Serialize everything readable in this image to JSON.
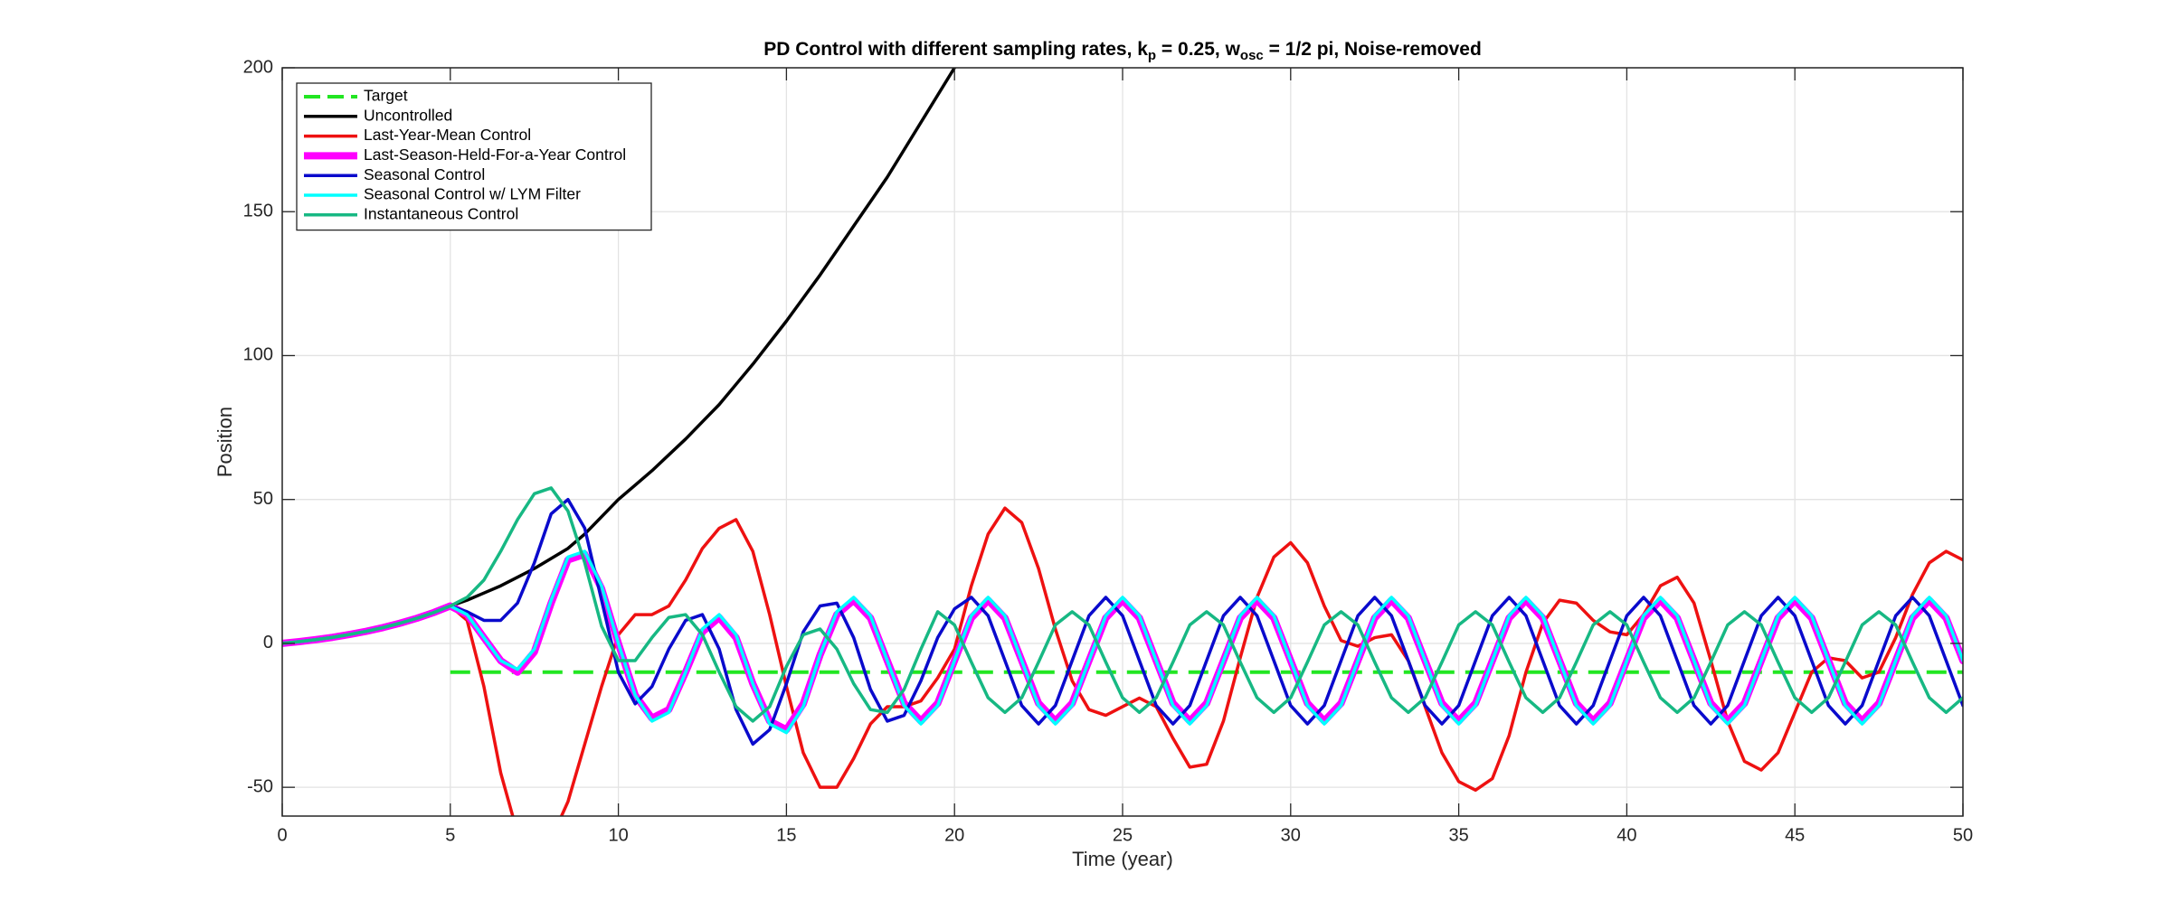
{
  "chart_data": {
    "type": "line",
    "title": [
      "PD Control with different sampling rates, k",
      "p",
      " = 0.25, w",
      "osc",
      " = 1/2 pi, Noise-removed"
    ],
    "x_label": "Time (year)",
    "y_label": "Position",
    "xlim": [
      0,
      50
    ],
    "ylim": [
      -60,
      200
    ],
    "xticks": [
      0,
      5,
      10,
      15,
      20,
      25,
      30,
      35,
      40,
      45,
      50
    ],
    "yticks": [
      -50,
      0,
      50,
      100,
      150,
      200
    ],
    "grid": true,
    "legend": "upper-left",
    "x": [
      0,
      0.5,
      1,
      1.5,
      2,
      2.5,
      3,
      3.5,
      4,
      4.5,
      5,
      5.5,
      6,
      6.5,
      7,
      7.5,
      8,
      8.5,
      9,
      9.5,
      10,
      10.5,
      11,
      11.5,
      12,
      12.5,
      13,
      13.5,
      14,
      14.5,
      15,
      15.5,
      16,
      16.5,
      17,
      17.5,
      18,
      18.5,
      19,
      19.5,
      20,
      20.5,
      21,
      21.5,
      22,
      22.5,
      23,
      23.5,
      24,
      24.5,
      25,
      25.5,
      26,
      26.5,
      27,
      27.5,
      28,
      28.5,
      29,
      29.5,
      30,
      30.5,
      31,
      31.5,
      32,
      32.5,
      33,
      33.5,
      34,
      34.5,
      35,
      35.5,
      36,
      36.5,
      37,
      37.5,
      38,
      38.5,
      39,
      39.5,
      40,
      40.5,
      41,
      41.5,
      42,
      42.5,
      43,
      43.5,
      44,
      44.5,
      45,
      45.5,
      46,
      46.5,
      47,
      47.5,
      48,
      48.5,
      49,
      49.5,
      50
    ],
    "series": [
      {
        "name": "Target",
        "color": "#22e622",
        "width": 4,
        "dash": true,
        "values": [
          null,
          null,
          null,
          null,
          null,
          null,
          null,
          null,
          null,
          null,
          -10,
          -10,
          -10,
          -10,
          -10,
          -10,
          -10,
          -10,
          -10,
          -10,
          -10,
          -10,
          -10,
          -10,
          -10,
          -10,
          -10,
          -10,
          -10,
          -10,
          -10,
          -10,
          -10,
          -10,
          -10,
          -10,
          -10,
          -10,
          -10,
          -10,
          -10,
          -10,
          -10,
          -10,
          -10,
          -10,
          -10,
          -10,
          -10,
          -10,
          -10,
          -10,
          -10,
          -10,
          -10,
          -10,
          -10,
          -10,
          -10,
          -10,
          -10,
          -10,
          -10,
          -10,
          -10,
          -10,
          -10,
          -10,
          -10,
          -10,
          -10,
          -10,
          -10,
          -10,
          -10,
          -10,
          -10,
          -10,
          -10,
          -10,
          -10,
          -10,
          -10,
          -10,
          -10,
          -10,
          -10,
          -10,
          -10,
          -10,
          -10,
          -10,
          -10,
          -10,
          -10,
          -10,
          -10,
          -10,
          -10,
          -10,
          -10
        ]
      },
      {
        "name": "Uncontrolled",
        "color": "#000000",
        "width": 3.5,
        "values": [
          0,
          0.6,
          1.3,
          2.1,
          3.1,
          4.2,
          5.5,
          7,
          8.7,
          10.7,
          13,
          15,
          17.5,
          20,
          23,
          26,
          29.5,
          33,
          38,
          44,
          50,
          55,
          60,
          65.5,
          71,
          77,
          83,
          90,
          97,
          104.5,
          112,
          120,
          128,
          136.5,
          145,
          153.5,
          162,
          171.5,
          181,
          190.5,
          200,
          null,
          null,
          null,
          null,
          null,
          null,
          null,
          null,
          null,
          null,
          null,
          null,
          null,
          null,
          null,
          null,
          null,
          null,
          null,
          null,
          null,
          null,
          null,
          null,
          null,
          null,
          null,
          null,
          null,
          null,
          null,
          null,
          null,
          null,
          null,
          null,
          null,
          null,
          null,
          null,
          null,
          null,
          null,
          null,
          null,
          null,
          null,
          null,
          null,
          null,
          null,
          null,
          null,
          null,
          null,
          null,
          null,
          null,
          null,
          null
        ]
      },
      {
        "name": "Last-Year-Mean Control",
        "color": "#ee1111",
        "width": 3.5,
        "values": [
          0,
          0.6,
          1.3,
          2.1,
          3.1,
          4.2,
          5.5,
          7,
          8.7,
          10.7,
          13,
          8,
          -15,
          -45,
          -66,
          -72,
          -68,
          -55,
          -35,
          -15,
          3,
          10,
          10,
          13,
          22,
          33,
          40,
          43,
          32,
          10,
          -15,
          -38,
          -50,
          -50,
          -40,
          -28,
          -22,
          -22,
          -20,
          -12,
          -2,
          20,
          38,
          47,
          42,
          26,
          5,
          -13,
          -23,
          -25,
          -22,
          -19,
          -22,
          -33,
          -43,
          -42,
          -27,
          -5,
          16,
          30,
          35,
          28,
          13,
          1,
          -1,
          2,
          3,
          -6,
          -22,
          -38,
          -48,
          -51,
          -47,
          -32,
          -10,
          7,
          15,
          14,
          8,
          4,
          3,
          10,
          20,
          23,
          14,
          -6,
          -27,
          -41,
          -44,
          -38,
          -24,
          -10,
          -5,
          -6,
          -12,
          -10,
          2,
          17,
          28,
          32,
          29
        ]
      },
      {
        "name": "Last-Season-Held-For-a-Year Control",
        "color": "#ff00ff",
        "width": 8,
        "values": [
          0,
          0.6,
          1.3,
          2.1,
          3.1,
          4.2,
          5.5,
          7,
          8.7,
          10.7,
          13,
          10,
          2,
          -6,
          -10,
          -3,
          14,
          29,
          31,
          19,
          0,
          -18,
          -26,
          -23,
          -10,
          4,
          9,
          2,
          -14,
          -27,
          -30,
          -21,
          -4,
          10,
          15,
          8.8,
          -6,
          -20.8,
          -27,
          -20.8,
          -6,
          8.8,
          15,
          8.8,
          -6,
          -20.8,
          -27,
          -20.8,
          -6,
          8.8,
          15,
          8.8,
          -6,
          -20.8,
          -27,
          -20.8,
          -6,
          8.8,
          15,
          8.8,
          -6,
          -20.8,
          -27,
          -20.8,
          -6,
          8.8,
          15,
          8.8,
          -6,
          -20.8,
          -27,
          -20.8,
          -6,
          8.8,
          15,
          8.8,
          -6,
          -20.8,
          -27,
          -20.8,
          -6,
          8.8,
          15,
          8.8,
          -6,
          -20.8,
          -27,
          -20.8,
          -6,
          8.8,
          15,
          8.8,
          -6,
          -20.8,
          -27,
          -20.8,
          -6,
          8.8,
          15,
          8.8,
          -6
        ]
      },
      {
        "name": "Seasonal Control",
        "color": "#0a0acc",
        "width": 3.5,
        "values": [
          0,
          0.6,
          1.3,
          2.1,
          3.1,
          4.2,
          5.5,
          7,
          8.7,
          10.7,
          13,
          11,
          8,
          8,
          14,
          28,
          45,
          50,
          40,
          15,
          -10,
          -21,
          -15,
          -2,
          8,
          10,
          -2,
          -23,
          -35,
          -30,
          -14,
          4,
          13,
          14,
          2,
          -16,
          -27,
          -25,
          -13,
          2,
          12,
          16,
          9.6,
          -6,
          -21.6,
          -28,
          -21.6,
          -6,
          9.6,
          16,
          9.6,
          -6,
          -21.6,
          -28,
          -21.6,
          -6,
          9.6,
          16,
          9.6,
          -6,
          -21.6,
          -28,
          -21.6,
          -6,
          9.6,
          16,
          9.6,
          -6,
          -21.6,
          -28,
          -21.6,
          -6,
          9.6,
          16,
          9.6,
          -6,
          -21.6,
          -28,
          -21.6,
          -6,
          9.6,
          16,
          9.6,
          -6,
          -21.6,
          -28,
          -21.6,
          -6,
          9.6,
          16,
          9.6,
          -6,
          -21.6,
          -28,
          -21.6,
          -6,
          9.6,
          16,
          9.6,
          -6,
          -21.6
        ]
      },
      {
        "name": "Seasonal Control w/ LYM Filter",
        "color": "#00ffff",
        "width": 3.5,
        "values": [
          0,
          0.6,
          1.3,
          2.1,
          3.1,
          4.2,
          5.5,
          7,
          8.7,
          10.7,
          13,
          10,
          2,
          -6,
          -9,
          -2,
          15,
          30,
          32,
          20,
          0,
          -18,
          -27,
          -24,
          -10,
          5,
          10,
          3,
          -14,
          -28,
          -31,
          -22,
          -4,
          11,
          16,
          9.6,
          -6,
          -21.6,
          -28,
          -21.6,
          -6,
          9.6,
          16,
          9.6,
          -6,
          -21.6,
          -28,
          -21.6,
          -6,
          9.6,
          16,
          9.6,
          -6,
          -21.6,
          -28,
          -21.6,
          -6,
          9.6,
          16,
          9.6,
          -6,
          -21.6,
          -28,
          -21.6,
          -6,
          9.6,
          16,
          9.6,
          -6,
          -21.6,
          -28,
          -21.6,
          -6,
          9.6,
          16,
          9.6,
          -6,
          -21.6,
          -28,
          -21.6,
          -6,
          9.6,
          16,
          9.6,
          -6,
          -21.6,
          -28,
          -21.6,
          -6,
          9.6,
          16,
          9.6,
          -6,
          -21.6,
          -28,
          -21.6,
          -6,
          9.6,
          16,
          9.6,
          -6
        ]
      },
      {
        "name": "Instantaneous Control",
        "color": "#17b883",
        "width": 3.5,
        "values": [
          0,
          0.6,
          1.3,
          2.1,
          3.1,
          4.2,
          5.5,
          7,
          8.7,
          10.7,
          13,
          16,
          22,
          32,
          43,
          52,
          54,
          46,
          28,
          6,
          -6,
          -6,
          2,
          9,
          10,
          3,
          -10,
          -22,
          -27,
          -22,
          -8,
          3,
          5,
          -2,
          -14,
          -23,
          -24,
          -16,
          -2,
          11,
          6.4,
          -6.5,
          -18.9,
          -24,
          -18.9,
          -6.5,
          6.4,
          11,
          6.4,
          -6.5,
          -18.9,
          -24,
          -18.9,
          -6.5,
          6.4,
          11,
          6.4,
          -6.5,
          -18.9,
          -24,
          -18.9,
          -6.5,
          6.4,
          11,
          6.4,
          -6.5,
          -18.9,
          -24,
          -18.9,
          -6.5,
          6.4,
          11,
          6.4,
          -6.5,
          -18.9,
          -24,
          -18.9,
          -6.5,
          6.4,
          11,
          6.4,
          -6.5,
          -18.9,
          -24,
          -18.9,
          -6.5,
          6.4,
          11,
          6.4,
          -6.5,
          -18.9,
          -24,
          -18.9,
          -6.5,
          6.4,
          11,
          6.4,
          -6.5,
          -18.9,
          -24,
          -18.9
        ]
      }
    ]
  }
}
